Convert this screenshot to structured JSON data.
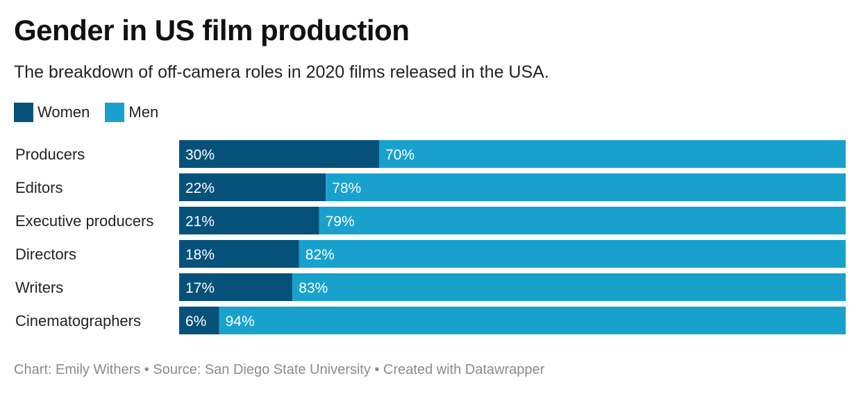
{
  "chart_data": {
    "type": "bar",
    "orientation": "horizontal",
    "stacked": true,
    "title": "Gender in US film production",
    "subtitle": "The breakdown of off-camera roles in 2020 films released in the USA.",
    "categories": [
      "Producers",
      "Editors",
      "Executive producers",
      "Directors",
      "Writers",
      "Cinematographers"
    ],
    "series": [
      {
        "name": "Women",
        "color": "#06517a",
        "values": [
          30,
          22,
          21,
          18,
          17,
          6
        ]
      },
      {
        "name": "Men",
        "color": "#19a1ce",
        "values": [
          70,
          78,
          79,
          82,
          83,
          94
        ]
      }
    ],
    "value_suffix": "%",
    "xlim": [
      0,
      100
    ],
    "grid": false,
    "legend_position": "top-left"
  },
  "footer": "Chart: Emily Withers • Source: San Diego State University • Created with Datawrapper"
}
